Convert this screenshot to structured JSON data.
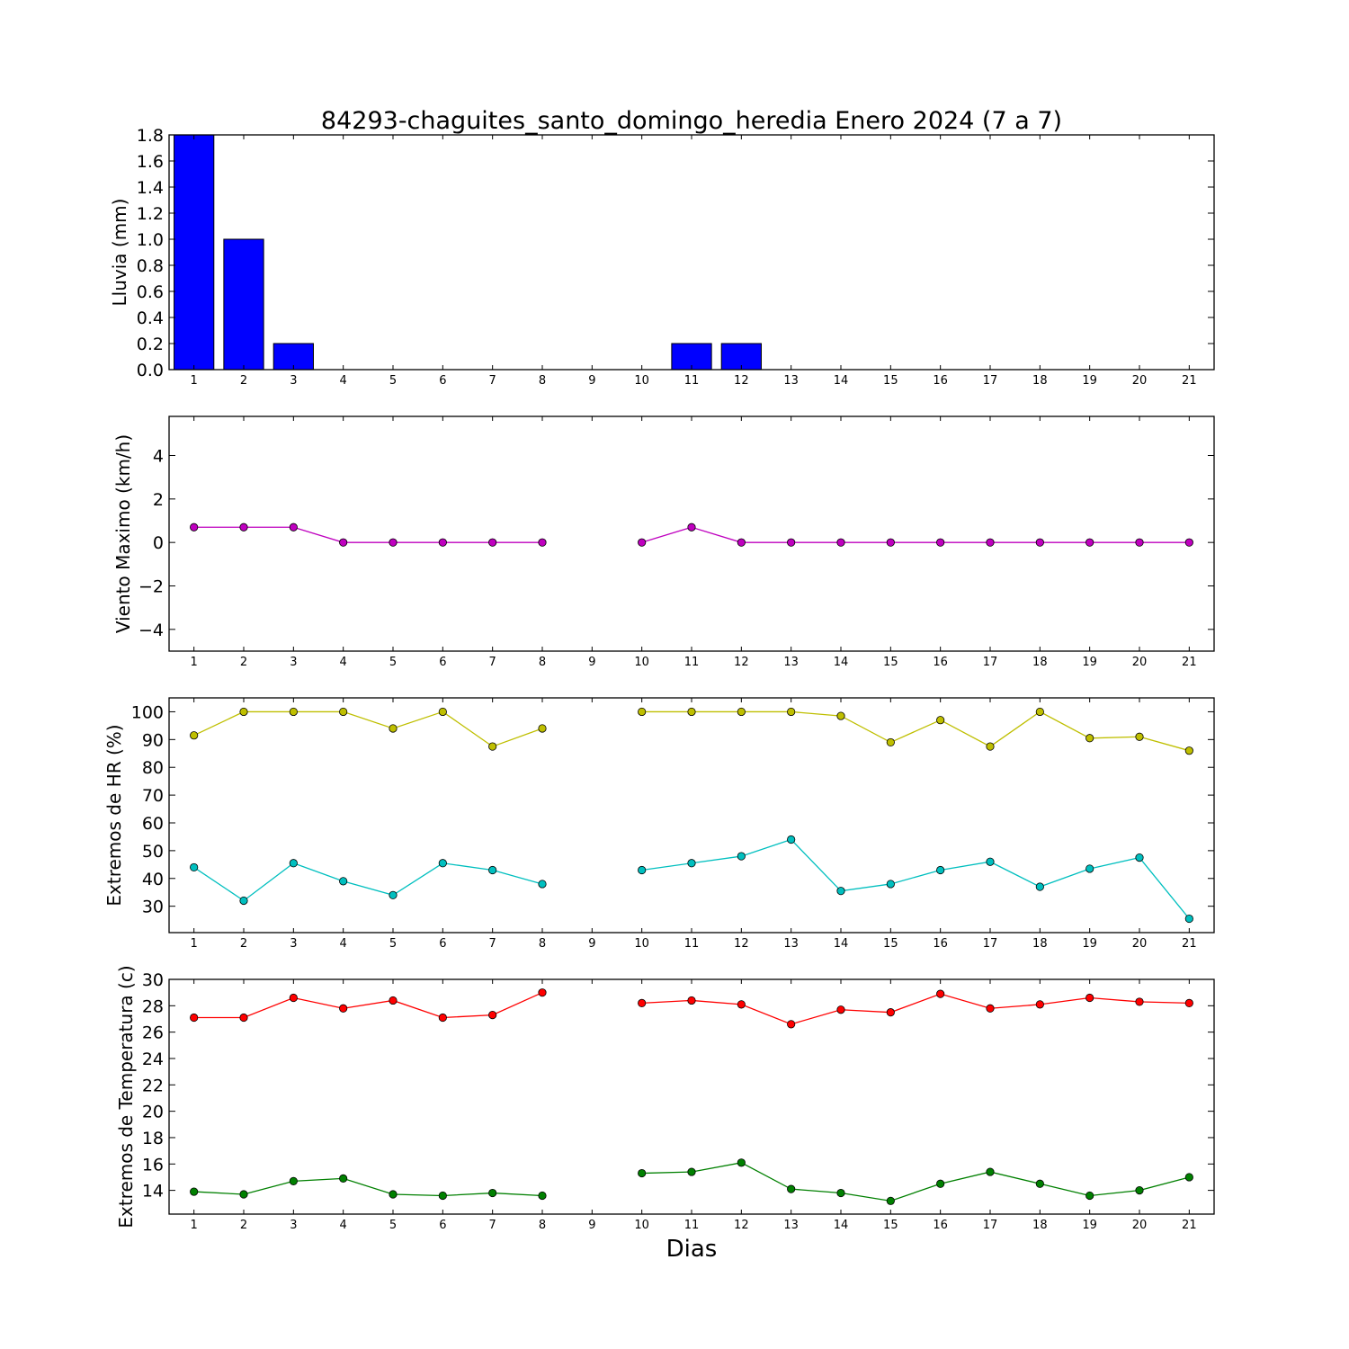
{
  "title": "84293-chaguites_santo_domingo_heredia Enero 2024  (7 a 7)",
  "xlabel": "Dias",
  "chart_data": [
    {
      "type": "bar",
      "ylabel": "Lluvia (mm)",
      "ylim": [
        0,
        1.8
      ],
      "yticks": [
        0.0,
        0.2,
        0.4,
        0.6,
        0.8,
        1.0,
        1.2,
        1.4,
        1.6,
        1.8
      ],
      "ytick_decimals": 1,
      "categories": [
        1,
        2,
        3,
        4,
        5,
        6,
        7,
        8,
        9,
        10,
        11,
        12,
        13,
        14,
        15,
        16,
        17,
        18,
        19,
        20,
        21
      ],
      "bar_color": "#0000ff",
      "values": [
        1.8,
        1.0,
        0.2,
        0,
        0,
        0,
        0,
        0,
        null,
        0,
        0.2,
        0.2,
        0,
        0,
        0,
        0,
        0,
        0,
        0,
        0,
        0
      ]
    },
    {
      "type": "line",
      "ylabel": "Viento Maximo (km/h)",
      "ylim": [
        -5,
        5.8
      ],
      "yticks": [
        -4,
        -2,
        0,
        2,
        4
      ],
      "ytick_decimals": 0,
      "x": [
        1,
        2,
        3,
        4,
        5,
        6,
        7,
        8,
        9,
        10,
        11,
        12,
        13,
        14,
        15,
        16,
        17,
        18,
        19,
        20,
        21
      ],
      "series": [
        {
          "color": "#bf00bf",
          "values": [
            0.7,
            0.7,
            0.7,
            0,
            0,
            0,
            0,
            0,
            null,
            0,
            0.7,
            0,
            0,
            0,
            0,
            0,
            0,
            0,
            0,
            0,
            0
          ]
        }
      ]
    },
    {
      "type": "line",
      "ylabel": "Extremos de HR (%)",
      "ylim": [
        20.5,
        105
      ],
      "yticks": [
        30,
        40,
        50,
        60,
        70,
        80,
        90,
        100
      ],
      "ytick_decimals": 0,
      "x": [
        1,
        2,
        3,
        4,
        5,
        6,
        7,
        8,
        9,
        10,
        11,
        12,
        13,
        14,
        15,
        16,
        17,
        18,
        19,
        20,
        21
      ],
      "series": [
        {
          "color": "#bfbf00",
          "values": [
            91.5,
            100,
            100,
            100,
            94,
            100,
            87.5,
            94,
            null,
            100,
            100,
            100,
            100,
            98.5,
            89,
            97,
            87.5,
            100,
            90.5,
            91,
            86
          ]
        },
        {
          "color": "#00bfbf",
          "values": [
            44,
            32,
            45.5,
            39,
            34,
            45.5,
            43,
            38,
            null,
            43,
            45.5,
            48,
            54,
            35.5,
            38,
            43,
            46,
            37,
            43.5,
            47.5,
            25.5
          ]
        }
      ]
    },
    {
      "type": "line",
      "ylabel": "Extremos de Temperatura (c)",
      "ylim": [
        12.2,
        30
      ],
      "yticks": [
        14,
        16,
        18,
        20,
        22,
        24,
        26,
        28,
        30
      ],
      "ytick_decimals": 0,
      "x": [
        1,
        2,
        3,
        4,
        5,
        6,
        7,
        8,
        9,
        10,
        11,
        12,
        13,
        14,
        15,
        16,
        17,
        18,
        19,
        20,
        21
      ],
      "series": [
        {
          "color": "#ff0000",
          "values": [
            27.1,
            27.1,
            28.6,
            27.8,
            28.4,
            27.1,
            27.3,
            29.0,
            null,
            28.2,
            28.4,
            28.1,
            26.6,
            27.7,
            27.5,
            28.9,
            27.8,
            28.1,
            28.6,
            28.3,
            28.2
          ]
        },
        {
          "color": "#008000",
          "values": [
            13.9,
            13.7,
            14.7,
            14.9,
            13.7,
            13.6,
            13.8,
            13.6,
            null,
            15.3,
            15.4,
            16.1,
            14.1,
            13.8,
            13.2,
            14.5,
            15.4,
            14.5,
            13.6,
            14.0,
            15.0
          ]
        }
      ]
    }
  ]
}
